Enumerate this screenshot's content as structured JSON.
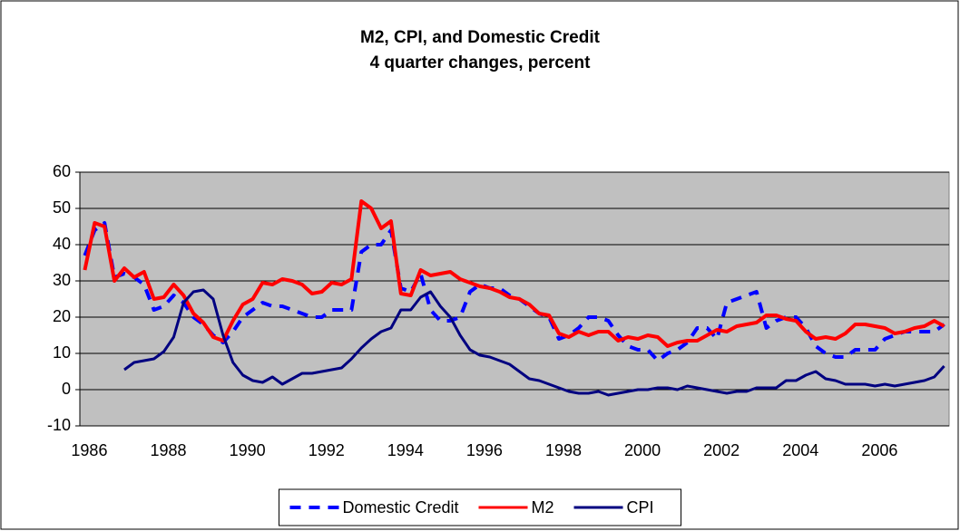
{
  "chart_data": {
    "type": "line",
    "title": "M2, CPI, and Domestic Credit",
    "subtitle": "4 quarter changes, percent",
    "categories": [
      "1986",
      null,
      null,
      null,
      null,
      null,
      null,
      null,
      "1988",
      null,
      null,
      null,
      null,
      null,
      null,
      null,
      "1990",
      null,
      null,
      null,
      null,
      null,
      null,
      null,
      "1992",
      null,
      null,
      null,
      null,
      null,
      null,
      null,
      "1994",
      null,
      null,
      null,
      null,
      null,
      null,
      null,
      "1996",
      null,
      null,
      null,
      null,
      null,
      null,
      null,
      "1998",
      null,
      null,
      null,
      null,
      null,
      null,
      null,
      "2000",
      null,
      null,
      null,
      null,
      null,
      null,
      null,
      "2002",
      null,
      null,
      null,
      null,
      null,
      null,
      null,
      "2004",
      null,
      null,
      null,
      null,
      null,
      null,
      null,
      "2006",
      null,
      null,
      null,
      null,
      null,
      null,
      null
    ],
    "series": [
      {
        "name": "Domestic Credit",
        "color": "#0000ff",
        "dashed": true,
        "values": [
          37,
          44,
          46,
          31,
          32,
          31,
          29,
          22,
          23,
          26,
          24,
          20,
          18,
          15,
          13,
          16,
          20,
          22,
          24,
          23,
          23,
          22,
          21,
          20,
          20,
          22,
          22,
          22,
          38,
          40,
          40,
          44,
          28,
          27,
          32,
          22,
          19,
          19,
          20,
          27,
          29,
          28,
          28,
          26,
          25,
          23,
          21,
          20,
          14,
          15,
          17,
          20,
          20,
          19,
          15,
          12,
          11,
          11,
          8,
          10,
          11,
          13,
          17,
          17,
          14,
          24,
          25,
          26,
          27,
          17,
          19,
          20,
          20,
          17,
          12,
          10,
          9,
          9,
          11,
          11,
          11,
          14,
          15,
          16,
          16,
          16,
          16,
          18
        ]
      },
      {
        "name": "M2",
        "color": "#ff0000",
        "dashed": false,
        "values": [
          33,
          46,
          45,
          30,
          33.5,
          31,
          32.5,
          25,
          25.5,
          29,
          26,
          21,
          18.5,
          14.5,
          13.5,
          19,
          23.5,
          25,
          29.5,
          29,
          30.5,
          30,
          29,
          26.5,
          27,
          29.5,
          29,
          30.5,
          52,
          50,
          44.5,
          46.5,
          26.5,
          26,
          33,
          31.5,
          32,
          32.5,
          30.5,
          29.5,
          28.5,
          28,
          27,
          25.5,
          25,
          23.5,
          21,
          20.5,
          15.5,
          14.5,
          16,
          15,
          16,
          16,
          13.5,
          14.5,
          14,
          15,
          14.5,
          12,
          13,
          13.5,
          13.5,
          15,
          16.5,
          16,
          17.5,
          18,
          18.5,
          20.5,
          20.5,
          19.5,
          19,
          16,
          14,
          14.5,
          14,
          15.5,
          18,
          18,
          17.5,
          17,
          15.5,
          16,
          17,
          17.5,
          19,
          17.5
        ]
      },
      {
        "name": "CPI",
        "color": "#000080",
        "dashed": false,
        "values": [
          null,
          null,
          null,
          null,
          5.5,
          7.5,
          8,
          8.5,
          10.5,
          14.5,
          24,
          27,
          27.5,
          25,
          15,
          7.5,
          4,
          2.5,
          2,
          3.5,
          1.5,
          3,
          4.5,
          4.5,
          5,
          5.5,
          6,
          8.5,
          11.5,
          14,
          16,
          17,
          22,
          22,
          25.5,
          27,
          23,
          20,
          15,
          11,
          9.5,
          9,
          8,
          7,
          5,
          3,
          2.5,
          1.5,
          0.5,
          -0.5,
          -1,
          -1,
          -0.5,
          -1.5,
          -1,
          -0.5,
          0,
          0,
          0.5,
          0.5,
          0,
          1,
          0.5,
          0,
          -0.5,
          -1,
          -0.5,
          -0.5,
          0.5,
          0.5,
          0.5,
          2.5,
          2.5,
          4,
          5,
          3,
          2.5,
          1.5,
          1.5,
          1.5,
          1,
          1.5,
          1,
          1.5,
          2,
          2.5,
          3.5,
          6.5
        ]
      }
    ],
    "ylim": [
      -10,
      60
    ],
    "yticks": [
      -10,
      0,
      10,
      20,
      30,
      40,
      50,
      60
    ],
    "grid": true,
    "plot_background": "#c0c0c0",
    "legend": "bottom"
  }
}
